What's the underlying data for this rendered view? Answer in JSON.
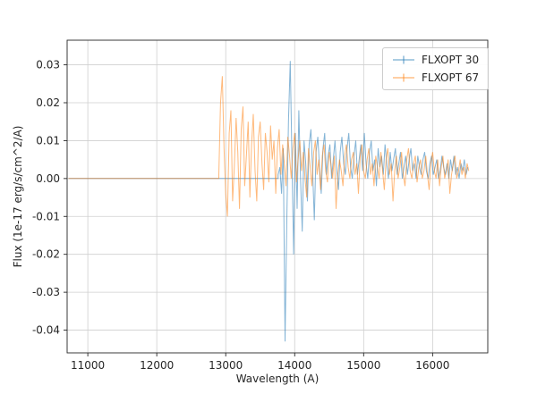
{
  "chart_data": {
    "type": "line",
    "title": "",
    "xlabel": "Wavelength (A)",
    "ylabel": "Flux (1e-17 erg/s/cm^2/A)",
    "xlim": [
      10700,
      16800
    ],
    "ylim": [
      -0.046,
      0.0365
    ],
    "xticks": [
      11000,
      12000,
      13000,
      14000,
      15000,
      16000
    ],
    "yticks": [
      0.03,
      0.02,
      0.01,
      0.0,
      -0.01,
      -0.02,
      -0.03,
      -0.04
    ],
    "grid": true,
    "legend": {
      "position": "upper right"
    },
    "series": [
      {
        "name": "FLXOPT 30",
        "color": "#1f77b4",
        "opacity": 0.55,
        "flat_from": 10720,
        "x_start": 13760,
        "x_step": 25,
        "values": [
          0.001,
          0.003,
          -0.004,
          0.008,
          -0.043,
          -0.012,
          0.015,
          0.031,
          0.005,
          -0.02,
          0.012,
          -0.008,
          0.018,
          0.0,
          -0.014,
          0.01,
          0.004,
          -0.006,
          0.009,
          0.013,
          0.002,
          -0.011,
          0.007,
          0.011,
          0.003,
          -0.004,
          0.008,
          0.012,
          0.001,
          0.006,
          0.009,
          0.0,
          0.005,
          0.01,
          0.002,
          -0.003,
          0.007,
          0.011,
          0.004,
          0.001,
          0.008,
          0.012,
          0.003,
          0.0,
          0.006,
          0.01,
          0.001,
          0.005,
          0.009,
          0.002,
          0.012,
          0.004,
          0.0,
          0.007,
          0.01,
          0.002,
          0.005,
          -0.002,
          0.008,
          0.003,
          0.006,
          0.001,
          0.009,
          0.004,
          0.0,
          0.007,
          0.002,
          0.005,
          0.008,
          0.001,
          0.004,
          0.007,
          0.0,
          0.003,
          0.006,
          0.001,
          0.005,
          0.008,
          0.002,
          0.004,
          0.0,
          0.006,
          0.003,
          0.001,
          0.005,
          0.007,
          0.002,
          0.0,
          0.004,
          0.006,
          0.001,
          0.003,
          0.005,
          0.0,
          0.002,
          0.006,
          0.003,
          0.001,
          0.004,
          0.0,
          0.005,
          0.002,
          0.006,
          0.001,
          0.003,
          0.0,
          0.004,
          0.002,
          0.005,
          0.001,
          0.003
        ]
      },
      {
        "name": "FLXOPT 67",
        "color": "#ff7f0e",
        "opacity": 0.55,
        "flat_from": 10720,
        "x_start": 12900,
        "x_step": 25,
        "values": [
          0.001,
          0.02,
          0.027,
          0.008,
          -0.004,
          -0.01,
          0.012,
          0.018,
          -0.006,
          0.003,
          0.016,
          0.007,
          -0.008,
          0.013,
          0.019,
          -0.002,
          0.006,
          0.015,
          -0.005,
          0.009,
          0.017,
          0.002,
          -0.006,
          0.011,
          0.015,
          0.004,
          -0.003,
          0.012,
          0.007,
          -0.001,
          0.014,
          0.005,
          0.01,
          -0.004,
          0.008,
          0.013,
          0.001,
          0.009,
          0.004,
          -0.002,
          0.011,
          0.006,
          0.0,
          0.008,
          0.012,
          -0.001,
          0.005,
          0.01,
          0.002,
          0.007,
          0.0,
          -0.005,
          0.008,
          0.003,
          -0.002,
          0.007,
          0.01,
          0.001,
          0.005,
          -0.003,
          0.006,
          0.009,
          0.002,
          -0.001,
          0.007,
          0.004,
          0.0,
          0.006,
          -0.008,
          0.001,
          0.005,
          0.002,
          -0.002,
          0.006,
          0.009,
          0.003,
          0.0,
          0.005,
          0.007,
          0.001,
          0.004,
          -0.004,
          0.006,
          0.009,
          0.002,
          0.0,
          0.005,
          0.008,
          0.001,
          0.004,
          -0.002,
          0.006,
          0.003,
          0.0,
          0.007,
          0.002,
          -0.003,
          0.005,
          0.008,
          0.001,
          0.004,
          -0.006,
          0.002,
          0.006,
          0.0,
          0.003,
          0.007,
          0.001,
          -0.002,
          0.005,
          0.008,
          0.002,
          0.0,
          0.004,
          0.006,
          -0.001,
          0.003,
          0.005,
          0.0,
          0.002,
          0.006,
          0.001,
          -0.003,
          0.004,
          0.007,
          0.002,
          0.0,
          0.005,
          -0.002,
          0.003,
          0.006,
          0.0,
          0.002,
          0.005,
          -0.004,
          0.001,
          0.004,
          0.006,
          0.0,
          0.002,
          0.005,
          0.001,
          0.003,
          0.0,
          0.004,
          0.002
        ]
      }
    ]
  }
}
